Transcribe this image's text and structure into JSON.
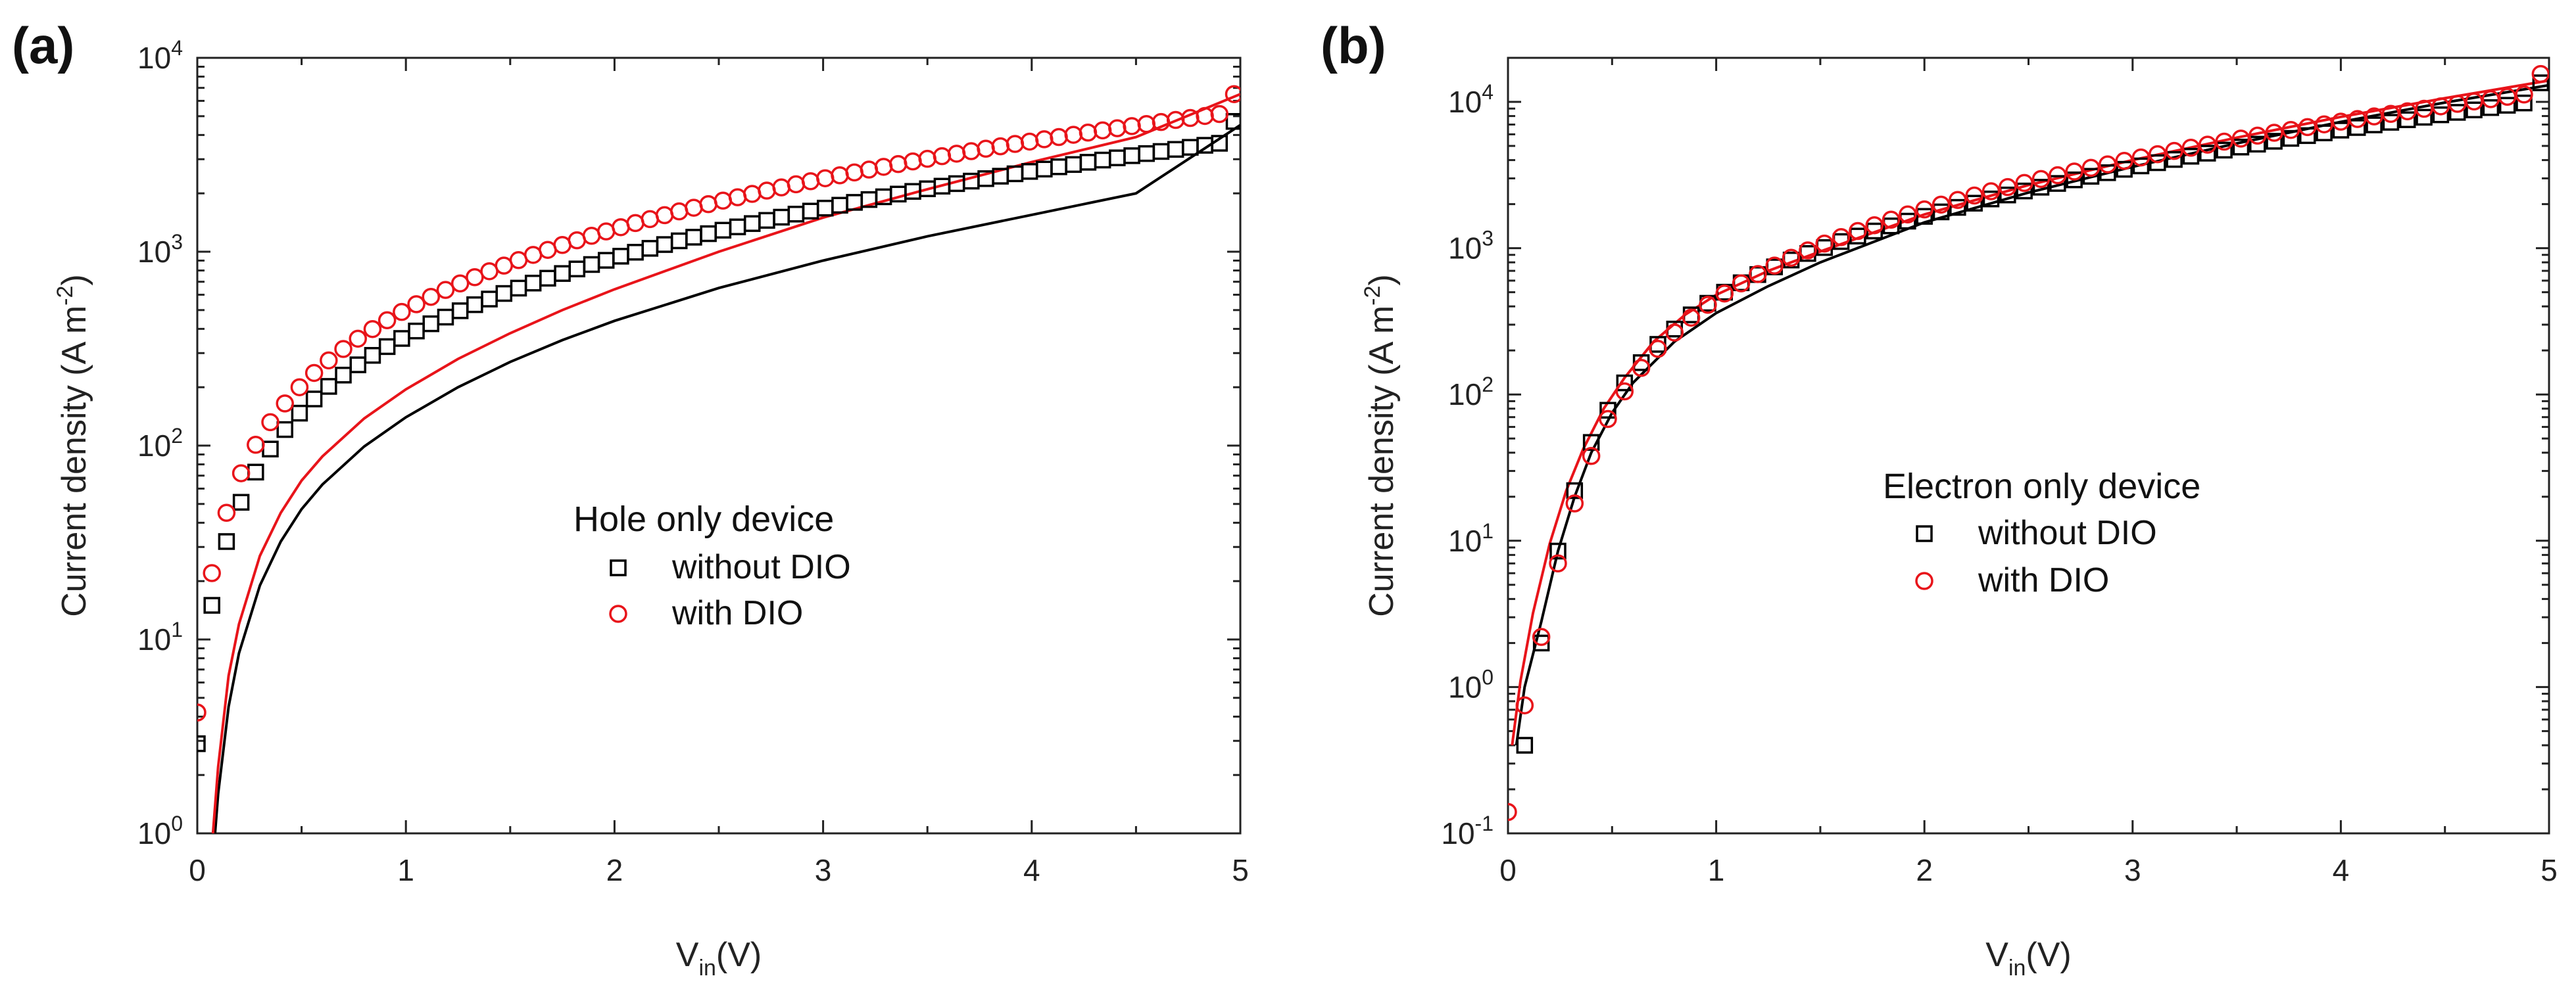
{
  "chart_data": [
    {
      "type": "scatter",
      "panel_label": "(a)",
      "xlabel_main": "V",
      "xlabel_sub": "in",
      "xlabel_suffix": "(V)",
      "ylabel_main": "Current density (A m",
      "ylabel_sup": "-2",
      "ylabel_suffix": ")",
      "xlim": [
        0,
        5
      ],
      "ylim": [
        1,
        10000
      ],
      "yscale": "log",
      "xticks": [
        "0",
        "1",
        "2",
        "3",
        "4",
        "5"
      ],
      "yticks": [
        {
          "base": "10",
          "exp": "0",
          "value": 1
        },
        {
          "base": "10",
          "exp": "1",
          "value": 10
        },
        {
          "base": "10",
          "exp": "2",
          "value": 100
        },
        {
          "base": "10",
          "exp": "3",
          "value": 1000
        },
        {
          "base": "10",
          "exp": "4",
          "value": 10000
        }
      ],
      "legend": {
        "title": "Hole only device",
        "position": "center",
        "entries": [
          "without DIO",
          "with DIO"
        ]
      },
      "series": [
        {
          "name": "without DIO",
          "marker": "square",
          "color": "#000000",
          "x": [
            0,
            0.07,
            0.14,
            0.21,
            0.28,
            0.35,
            0.42,
            0.49,
            0.56,
            0.63,
            0.7,
            0.77,
            0.84,
            0.91,
            0.98,
            1.05,
            1.12,
            1.19,
            1.26,
            1.33,
            1.4,
            1.47,
            1.54,
            1.61,
            1.68,
            1.75,
            1.82,
            1.89,
            1.96,
            2.03,
            2.1,
            2.17,
            2.24,
            2.31,
            2.38,
            2.45,
            2.52,
            2.59,
            2.66,
            2.73,
            2.8,
            2.87,
            2.94,
            3.01,
            3.08,
            3.15,
            3.22,
            3.29,
            3.36,
            3.43,
            3.5,
            3.57,
            3.64,
            3.71,
            3.78,
            3.85,
            3.92,
            3.99,
            4.06,
            4.13,
            4.2,
            4.27,
            4.34,
            4.41,
            4.48,
            4.55,
            4.62,
            4.69,
            4.76,
            4.83,
            4.9,
            4.97
          ],
          "y": [
            2.9,
            15,
            32,
            51,
            73,
            96,
            121,
            147,
            174,
            202,
            231,
            261,
            292,
            324,
            357,
            390,
            425,
            460,
            496,
            533,
            570,
            609,
            649,
            689,
            730,
            772,
            815,
            859,
            903,
            948,
            994,
            1041,
            1089,
            1138,
            1188,
            1239,
            1291,
            1343,
            1397,
            1451,
            1507,
            1563,
            1620,
            1678,
            1737,
            1797,
            1858,
            1920,
            1983,
            2047,
            2112,
            2178,
            2245,
            2313,
            2382,
            2452,
            2523,
            2595,
            2668,
            2742,
            2817,
            2893,
            2970,
            3049,
            3128,
            3208,
            3289,
            3372,
            3455,
            3539,
            3625,
            4700
          ]
        },
        {
          "name": "with DIO",
          "marker": "circle",
          "color": "#e8141a",
          "x": [
            0,
            0.07,
            0.14,
            0.21,
            0.28,
            0.35,
            0.42,
            0.49,
            0.56,
            0.63,
            0.7,
            0.77,
            0.84,
            0.91,
            0.98,
            1.05,
            1.12,
            1.19,
            1.26,
            1.33,
            1.4,
            1.47,
            1.54,
            1.61,
            1.68,
            1.75,
            1.82,
            1.89,
            1.96,
            2.03,
            2.1,
            2.17,
            2.24,
            2.31,
            2.38,
            2.45,
            2.52,
            2.59,
            2.66,
            2.73,
            2.8,
            2.87,
            2.94,
            3.01,
            3.08,
            3.15,
            3.22,
            3.29,
            3.36,
            3.43,
            3.5,
            3.57,
            3.64,
            3.71,
            3.78,
            3.85,
            3.92,
            3.99,
            4.06,
            4.13,
            4.2,
            4.27,
            4.34,
            4.41,
            4.48,
            4.55,
            4.62,
            4.69,
            4.76,
            4.83,
            4.9,
            4.97
          ],
          "y": [
            4.2,
            22,
            45,
            72,
            101,
            132,
            165,
            200,
            237,
            275,
            315,
            356,
            399,
            443,
            489,
            536,
            585,
            635,
            686,
            739,
            793,
            848,
            905,
            963,
            1022,
            1083,
            1145,
            1208,
            1272,
            1338,
            1405,
            1473,
            1543,
            1614,
            1686,
            1759,
            1834,
            1910,
            1987,
            2066,
            2146,
            2227,
            2309,
            2393,
            2478,
            2564,
            2652,
            2741,
            2831,
            2922,
            3015,
            3109,
            3204,
            3300,
            3398,
            3497,
            3597,
            3698,
            3801,
            3905,
            4010,
            4116,
            4224,
            4333,
            4443,
            4555,
            4668,
            4782,
            4897,
            5014,
            5132,
            6500
          ]
        }
      ],
      "fit_lines": [
        {
          "name": "without DIO fit",
          "color": "#000000",
          "x": [
            0.085,
            0.1,
            0.15,
            0.2,
            0.3,
            0.4,
            0.5,
            0.6,
            0.8,
            1,
            1.25,
            1.5,
            1.75,
            2,
            2.5,
            3,
            3.5,
            4,
            4.5,
            5
          ],
          "y": [
            1,
            1.6,
            4.5,
            8.5,
            19,
            32,
            47,
            63,
            99,
            140,
            200,
            270,
            350,
            440,
            650,
            900,
            1200,
            1550,
            2000,
            4500
          ]
        },
        {
          "name": "with DIO fit",
          "color": "#e8141a",
          "x": [
            0.075,
            0.1,
            0.15,
            0.2,
            0.3,
            0.4,
            0.5,
            0.6,
            0.8,
            1,
            1.25,
            1.5,
            1.75,
            2,
            2.5,
            3,
            3.5,
            4,
            4.5,
            5
          ],
          "y": [
            1,
            2.2,
            6.5,
            12,
            27,
            45,
            66,
            88,
            138,
            195,
            280,
            380,
            500,
            640,
            1000,
            1500,
            2100,
            2900,
            3900,
            6500
          ]
        }
      ]
    },
    {
      "type": "scatter",
      "panel_label": "(b)",
      "xlabel_main": "V",
      "xlabel_sub": "in",
      "xlabel_suffix": "(V)",
      "ylabel_main": "Current density (A m",
      "ylabel_sup": "-2",
      "ylabel_suffix": ")",
      "xlim": [
        0,
        5
      ],
      "ylim": [
        0.1,
        20000
      ],
      "yscale": "log",
      "xticks": [
        "0",
        "1",
        "2",
        "3",
        "4",
        "5"
      ],
      "yticks": [
        {
          "base": "10",
          "exp": "-1",
          "value": 0.1
        },
        {
          "base": "10",
          "exp": "0",
          "value": 1
        },
        {
          "base": "10",
          "exp": "1",
          "value": 10
        },
        {
          "base": "10",
          "exp": "2",
          "value": 100
        },
        {
          "base": "10",
          "exp": "3",
          "value": 1000
        },
        {
          "base": "10",
          "exp": "4",
          "value": 10000
        }
      ],
      "legend": {
        "title": "Electron only device",
        "position": "center-right",
        "entries": [
          "without DIO",
          "with DIO"
        ]
      },
      "series": [
        {
          "name": "without DIO",
          "marker": "square",
          "color": "#000000",
          "x": [
            0.08,
            0.16,
            0.24,
            0.32,
            0.4,
            0.48,
            0.56,
            0.64,
            0.72,
            0.8,
            0.88,
            0.96,
            1.04,
            1.12,
            1.2,
            1.28,
            1.36,
            1.44,
            1.52,
            1.6,
            1.68,
            1.76,
            1.84,
            1.92,
            2,
            2.08,
            2.16,
            2.24,
            2.32,
            2.4,
            2.48,
            2.56,
            2.64,
            2.72,
            2.8,
            2.88,
            2.96,
            3.04,
            3.12,
            3.2,
            3.28,
            3.36,
            3.44,
            3.52,
            3.6,
            3.68,
            3.76,
            3.84,
            3.92,
            4,
            4.08,
            4.16,
            4.24,
            4.32,
            4.4,
            4.48,
            4.56,
            4.64,
            4.72,
            4.8,
            4.88,
            4.96
          ],
          "y": [
            0.4,
            2,
            8.5,
            22,
            47,
            78,
            120,
            165,
            220,
            280,
            350,
            420,
            500,
            580,
            660,
            745,
            830,
            920,
            1010,
            1110,
            1210,
            1310,
            1420,
            1530,
            1650,
            1770,
            1900,
            2030,
            2170,
            2310,
            2460,
            2610,
            2770,
            2930,
            3100,
            3280,
            3460,
            3650,
            3840,
            4040,
            4250,
            4460,
            4680,
            4910,
            5140,
            5380,
            5630,
            5880,
            6140,
            6410,
            6680,
            6960,
            7250,
            7550,
            7850,
            8160,
            8480,
            8810,
            9140,
            9480,
            9830,
            13500
          ]
        },
        {
          "name": "with DIO",
          "marker": "circle",
          "color": "#e8141a",
          "x": [
            0,
            0.08,
            0.16,
            0.24,
            0.32,
            0.4,
            0.48,
            0.56,
            0.64,
            0.72,
            0.8,
            0.88,
            0.96,
            1.04,
            1.12,
            1.2,
            1.28,
            1.36,
            1.44,
            1.52,
            1.6,
            1.68,
            1.76,
            1.84,
            1.92,
            2,
            2.08,
            2.16,
            2.24,
            2.32,
            2.4,
            2.48,
            2.56,
            2.64,
            2.72,
            2.8,
            2.88,
            2.96,
            3.04,
            3.12,
            3.2,
            3.28,
            3.36,
            3.44,
            3.52,
            3.6,
            3.68,
            3.76,
            3.84,
            3.92,
            4,
            4.08,
            4.16,
            4.24,
            4.32,
            4.4,
            4.48,
            4.56,
            4.64,
            4.72,
            4.8,
            4.88,
            4.96
          ],
          "y": [
            0.14,
            0.75,
            2.2,
            7,
            18,
            38,
            68,
            105,
            152,
            205,
            265,
            335,
            410,
            490,
            575,
            665,
            760,
            860,
            965,
            1075,
            1190,
            1310,
            1435,
            1565,
            1700,
            1840,
            1985,
            2135,
            2290,
            2450,
            2615,
            2790,
            2970,
            3150,
            3340,
            3540,
            3740,
            3950,
            4170,
            4390,
            4620,
            4860,
            5100,
            5350,
            5610,
            5880,
            6150,
            6430,
            6720,
            7020,
            7320,
            7630,
            7950,
            8280,
            8620,
            8970,
            9320,
            9690,
            10060,
            10440,
            10830,
            11230,
            15500
          ]
        }
      ],
      "fit_lines": [
        {
          "name": "without DIO fit",
          "color": "#000000",
          "x": [
            0.04,
            0.08,
            0.16,
            0.24,
            0.32,
            0.4,
            0.5,
            0.6,
            0.8,
            1,
            1.25,
            1.5,
            2,
            2.5,
            3,
            3.5,
            4,
            4.5,
            5
          ],
          "y": [
            0.4,
            1,
            2.8,
            8.5,
            20,
            40,
            75,
            120,
            230,
            360,
            550,
            800,
            1500,
            2400,
            3600,
            5200,
            7300,
            9900,
            13000
          ]
        },
        {
          "name": "with DIO fit",
          "color": "#e8141a",
          "x": [
            0.02,
            0.06,
            0.12,
            0.2,
            0.28,
            0.36,
            0.46,
            0.56,
            0.7,
            0.85,
            1,
            1.25,
            1.5,
            2,
            2.5,
            3,
            3.5,
            4,
            4.5,
            5
          ],
          "y": [
            0.4,
            1.1,
            3.2,
            9.5,
            22,
            42,
            80,
            130,
            230,
            350,
            480,
            700,
            950,
            1700,
            2700,
            4000,
            5700,
            7900,
            10600,
            14000
          ]
        }
      ]
    }
  ]
}
